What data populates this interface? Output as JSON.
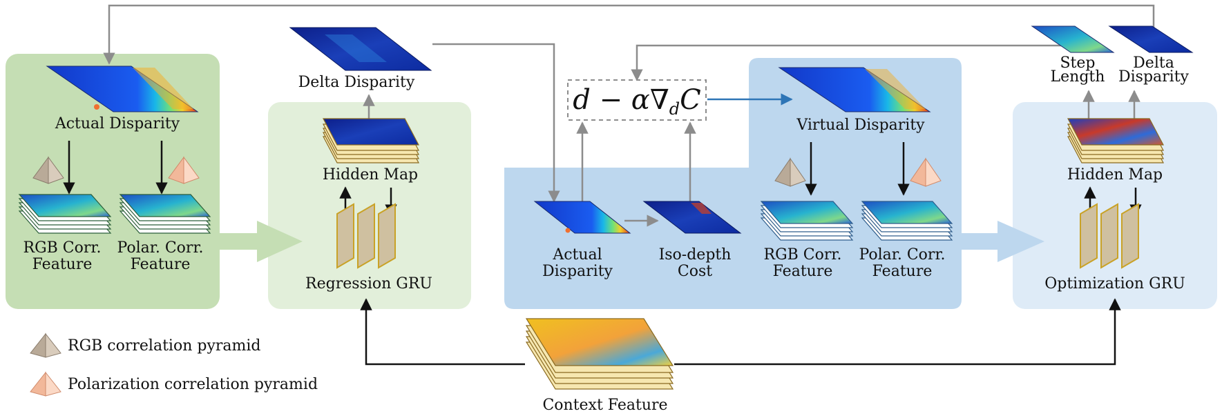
{
  "diagram": {
    "left_panel": {
      "top_map_label": "Actual Disparity",
      "rgb_feature_label_1": "RGB Corr.",
      "rgb_feature_label_2": "Feature",
      "polar_feature_label_1": "Polar. Corr.",
      "polar_feature_label_2": "Feature"
    },
    "regression": {
      "output_label": "Delta Disparity",
      "hidden_label": "Hidden Map",
      "gru_label": "Regression GRU"
    },
    "formula": "d − α∇",
    "formula_sub": "d",
    "formula_tail": "C",
    "middle_panel": {
      "actual_label_1": "Actual",
      "actual_label_2": "Disparity",
      "cost_label_1": "Iso-depth",
      "cost_label_2": "Cost",
      "virtual_label": "Virtual Disparity",
      "rgb_feature_label_1": "RGB Corr.",
      "rgb_feature_label_2": "Feature",
      "polar_feature_label_1": "Polar. Corr.",
      "polar_feature_label_2": "Feature"
    },
    "optimization": {
      "step_label_1": "Step",
      "step_label_2": "Length",
      "delta_label_1": "Delta",
      "delta_label_2": "Disparity",
      "hidden_label": "Hidden Map",
      "gru_label": "Optimization GRU"
    },
    "context_label": "Context Feature",
    "legend": {
      "rgb_pyramid": "RGB correlation pyramid",
      "polar_pyramid": "Polarization correlation pyramid"
    },
    "colors": {
      "green_dark": "#c5deb4",
      "green_light": "#e2efda",
      "blue_dark": "#bdd7ee",
      "blue_light": "#deebf7",
      "gru_fill": "#cfc0a0",
      "gru_stroke": "#c9a227",
      "arrow_gray": "#8c8c8c",
      "arrow_blue": "#2e75b6"
    }
  }
}
